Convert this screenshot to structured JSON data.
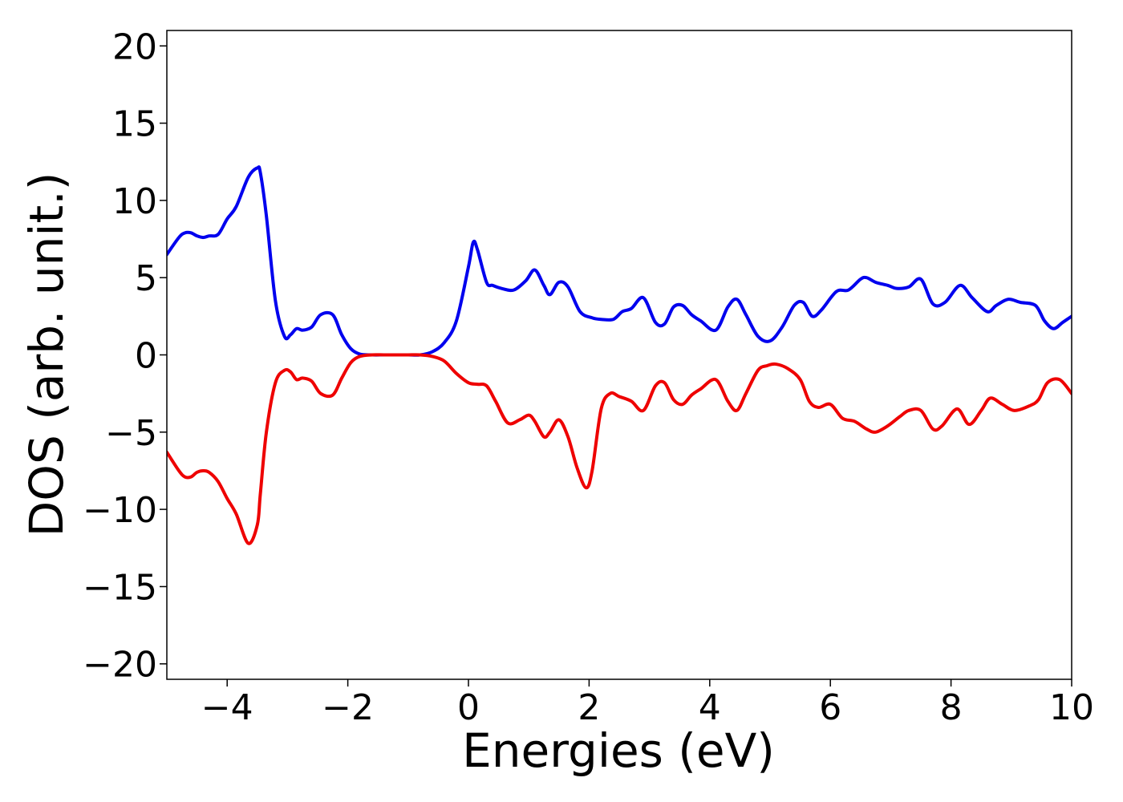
{
  "chart_data": {
    "type": "line",
    "title": "",
    "xlabel": "Energies (eV)",
    "ylabel": "DOS (arb. unit.)",
    "xlim": [
      -5,
      10
    ],
    "ylim": [
      -21,
      21
    ],
    "grid": false,
    "legend": "none",
    "x_ticks": [
      -4,
      -2,
      0,
      2,
      4,
      6,
      8,
      10
    ],
    "y_ticks": [
      -20,
      -15,
      -10,
      -5,
      0,
      5,
      10,
      15,
      20
    ],
    "series": [
      {
        "color": "#0000ee",
        "x": [
          -5.0,
          -4.8,
          -4.7,
          -4.6,
          -4.5,
          -4.4,
          -4.3,
          -4.15,
          -4.0,
          -3.85,
          -3.65,
          -3.5,
          -3.45,
          -3.35,
          -3.2,
          -3.05,
          -2.95,
          -2.85,
          -2.75,
          -2.6,
          -2.45,
          -2.25,
          -2.1,
          -1.95,
          -1.8,
          -1.6,
          -1.4,
          -1.2,
          -1.0,
          -0.8,
          -0.6,
          -0.4,
          -0.2,
          0.0,
          0.08,
          0.15,
          0.3,
          0.4,
          0.55,
          0.75,
          0.95,
          1.1,
          1.25,
          1.35,
          1.5,
          1.65,
          1.85,
          2.05,
          2.2,
          2.4,
          2.55,
          2.7,
          2.9,
          3.1,
          3.25,
          3.4,
          3.55,
          3.7,
          3.85,
          4.1,
          4.3,
          4.45,
          4.6,
          4.8,
          5.0,
          5.2,
          5.4,
          5.55,
          5.7,
          5.85,
          6.1,
          6.3,
          6.5,
          6.6,
          6.75,
          6.95,
          7.1,
          7.3,
          7.5,
          7.7,
          7.9,
          8.15,
          8.35,
          8.6,
          8.75,
          8.95,
          9.15,
          9.4,
          9.55,
          9.7,
          9.85,
          10.0
        ],
        "y": [
          6.5,
          7.6,
          7.9,
          7.9,
          7.7,
          7.6,
          7.7,
          7.8,
          8.8,
          9.6,
          11.5,
          12.1,
          11.8,
          9.0,
          3.5,
          1.2,
          1.3,
          1.7,
          1.6,
          1.8,
          2.6,
          2.6,
          1.3,
          0.4,
          0.05,
          0.0,
          0.0,
          0.0,
          0.0,
          0.0,
          0.2,
          0.8,
          2.2,
          5.7,
          7.3,
          6.8,
          4.7,
          4.5,
          4.3,
          4.2,
          4.8,
          5.5,
          4.5,
          3.9,
          4.7,
          4.4,
          2.8,
          2.4,
          2.3,
          2.3,
          2.8,
          3.0,
          3.7,
          2.1,
          2.0,
          3.1,
          3.2,
          2.6,
          2.2,
          1.6,
          3.1,
          3.6,
          2.6,
          1.2,
          0.9,
          1.8,
          3.2,
          3.4,
          2.5,
          2.9,
          4.1,
          4.2,
          4.9,
          5.0,
          4.7,
          4.5,
          4.3,
          4.4,
          4.9,
          3.3,
          3.4,
          4.5,
          3.7,
          2.8,
          3.2,
          3.6,
          3.4,
          3.2,
          2.2,
          1.7,
          2.1,
          2.5
        ]
      },
      {
        "color": "#ee0000",
        "x": [
          -5.0,
          -4.8,
          -4.7,
          -4.6,
          -4.5,
          -4.4,
          -4.3,
          -4.15,
          -4.0,
          -3.85,
          -3.65,
          -3.5,
          -3.45,
          -3.35,
          -3.2,
          -3.05,
          -2.95,
          -2.85,
          -2.75,
          -2.6,
          -2.45,
          -2.25,
          -2.1,
          -1.95,
          -1.8,
          -1.6,
          -1.4,
          -1.2,
          -1.0,
          -0.8,
          -0.6,
          -0.4,
          -0.2,
          0.0,
          0.15,
          0.3,
          0.45,
          0.65,
          0.85,
          1.0,
          1.1,
          1.25,
          1.35,
          1.5,
          1.65,
          1.8,
          1.95,
          2.05,
          2.2,
          2.35,
          2.5,
          2.7,
          2.9,
          3.1,
          3.25,
          3.4,
          3.55,
          3.7,
          3.85,
          4.1,
          4.3,
          4.45,
          4.6,
          4.8,
          4.95,
          5.1,
          5.3,
          5.5,
          5.65,
          5.8,
          6.0,
          6.2,
          6.4,
          6.6,
          6.75,
          6.95,
          7.15,
          7.3,
          7.5,
          7.7,
          7.85,
          8.1,
          8.3,
          8.5,
          8.65,
          8.85,
          9.05,
          9.3,
          9.45,
          9.6,
          9.8,
          10.0
        ],
        "y": [
          -6.3,
          -7.5,
          -7.9,
          -7.9,
          -7.6,
          -7.5,
          -7.6,
          -8.2,
          -9.3,
          -10.3,
          -12.2,
          -11.0,
          -9.0,
          -5.0,
          -1.8,
          -1.0,
          -1.1,
          -1.6,
          -1.5,
          -1.7,
          -2.5,
          -2.6,
          -1.5,
          -0.5,
          -0.1,
          0.0,
          0.0,
          0.0,
          0.0,
          0.0,
          -0.1,
          -0.4,
          -1.2,
          -1.8,
          -1.9,
          -2.0,
          -3.0,
          -4.4,
          -4.2,
          -3.9,
          -4.3,
          -5.3,
          -5.0,
          -4.2,
          -5.3,
          -7.3,
          -8.6,
          -7.5,
          -3.5,
          -2.5,
          -2.7,
          -3.0,
          -3.6,
          -2.0,
          -1.8,
          -2.9,
          -3.2,
          -2.6,
          -2.2,
          -1.6,
          -3.0,
          -3.6,
          -2.5,
          -1.0,
          -0.7,
          -0.6,
          -0.9,
          -1.6,
          -3.0,
          -3.4,
          -3.2,
          -4.1,
          -4.3,
          -4.8,
          -5.0,
          -4.6,
          -4.0,
          -3.6,
          -3.6,
          -4.8,
          -4.6,
          -3.5,
          -4.5,
          -3.6,
          -2.8,
          -3.2,
          -3.6,
          -3.3,
          -2.9,
          -1.8,
          -1.6,
          -2.5
        ]
      }
    ]
  }
}
